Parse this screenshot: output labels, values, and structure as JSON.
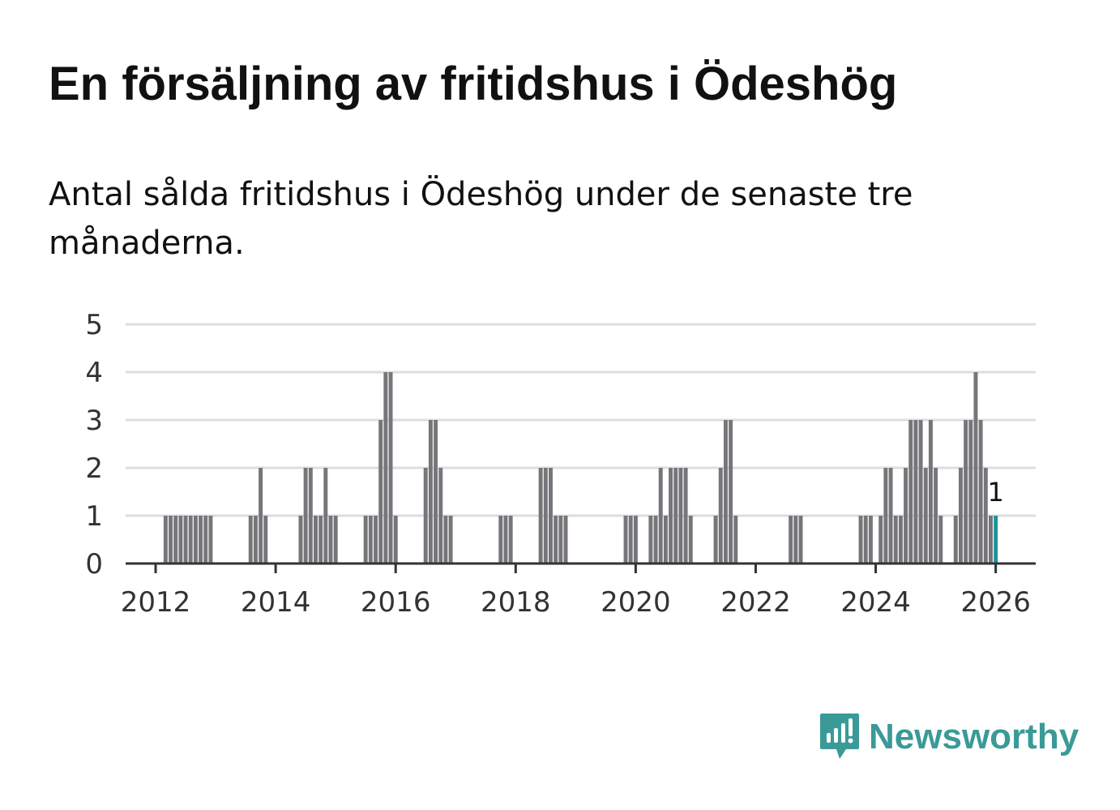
{
  "title": "En försäljning av fritidshus i Ödeshög",
  "subtitle": "Antal sålda fritidshus i Ödeshög under de senaste tre månaderna.",
  "brand": {
    "name": "Newsworthy",
    "icon": "newsworthy-logo-icon",
    "color": "#3a9a97"
  },
  "colors": {
    "bar": "#76767a",
    "highlight": "#1a9696",
    "grid": "#dddddd",
    "axis": "#333333"
  },
  "chart_data": {
    "type": "bar",
    "title": "",
    "xlabel": "",
    "ylabel": "",
    "ylim": [
      0,
      5
    ],
    "yticks": [
      "0",
      "1",
      "2",
      "3",
      "4",
      "5"
    ],
    "xticks": [
      "2012",
      "2014",
      "2016",
      "2018",
      "2020",
      "2022",
      "2024",
      "2026"
    ],
    "grid": true,
    "legend": "none",
    "x_range": [
      "2011-07",
      "2026-09"
    ],
    "x": [
      "2012-03",
      "2012-04",
      "2012-05",
      "2012-06",
      "2012-07",
      "2012-08",
      "2012-09",
      "2012-10",
      "2012-11",
      "2012-12",
      "2013-08",
      "2013-09",
      "2013-10",
      "2013-11",
      "2014-06",
      "2014-07",
      "2014-08",
      "2014-09",
      "2014-10",
      "2014-11",
      "2014-12",
      "2015-01",
      "2015-07",
      "2015-08",
      "2015-09",
      "2015-10",
      "2015-11",
      "2015-12",
      "2016-01",
      "2016-07",
      "2016-08",
      "2016-09",
      "2016-10",
      "2016-11",
      "2016-12",
      "2017-10",
      "2017-11",
      "2017-12",
      "2018-06",
      "2018-07",
      "2018-08",
      "2018-09",
      "2018-10",
      "2018-11",
      "2019-11",
      "2019-12",
      "2020-01",
      "2020-04",
      "2020-05",
      "2020-06",
      "2020-07",
      "2020-08",
      "2020-09",
      "2020-10",
      "2020-11",
      "2020-12",
      "2021-05",
      "2021-06",
      "2021-07",
      "2021-08",
      "2021-09",
      "2022-08",
      "2022-09",
      "2022-10",
      "2023-10",
      "2023-11",
      "2023-12",
      "2024-02",
      "2024-03",
      "2024-04",
      "2024-05",
      "2024-06",
      "2024-07",
      "2024-08",
      "2024-09",
      "2024-10",
      "2024-11",
      "2024-12",
      "2025-01",
      "2025-02",
      "2025-05",
      "2025-06",
      "2025-07",
      "2025-08",
      "2025-09",
      "2025-10",
      "2025-11",
      "2025-12",
      "2026-01"
    ],
    "values": [
      1,
      1,
      1,
      1,
      1,
      1,
      1,
      1,
      1,
      1,
      1,
      1,
      2,
      1,
      1,
      2,
      2,
      1,
      1,
      2,
      1,
      1,
      1,
      1,
      1,
      3,
      4,
      4,
      1,
      2,
      3,
      3,
      2,
      1,
      1,
      1,
      1,
      1,
      2,
      2,
      2,
      1,
      1,
      1,
      1,
      1,
      1,
      1,
      1,
      2,
      1,
      2,
      2,
      2,
      2,
      1,
      1,
      2,
      3,
      3,
      1,
      1,
      1,
      1,
      1,
      1,
      1,
      1,
      2,
      2,
      1,
      1,
      2,
      3,
      3,
      3,
      2,
      3,
      2,
      1,
      1,
      2,
      3,
      3,
      4,
      3,
      2,
      1,
      1
    ],
    "highlight_index": 88,
    "annotation": "1"
  }
}
